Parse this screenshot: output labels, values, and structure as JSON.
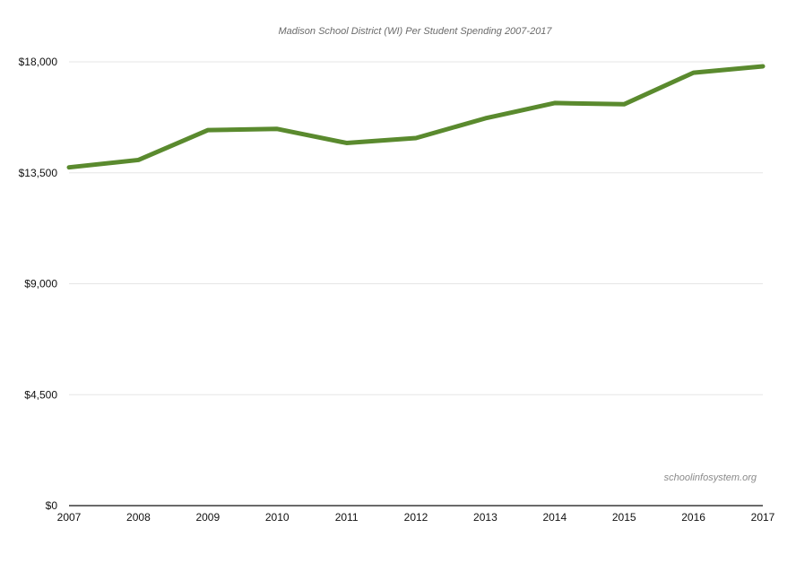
{
  "chart_data": {
    "type": "line",
    "title": "Madison School District (WI) Per Student Spending 2007-2017",
    "xlabel": "",
    "ylabel": "",
    "x": [
      "2007",
      "2008",
      "2009",
      "2010",
      "2011",
      "2012",
      "2013",
      "2014",
      "2015",
      "2016",
      "2017"
    ],
    "series": [
      {
        "values": [
          13720,
          14020,
          15230,
          15280,
          14710,
          14910,
          15710,
          16330,
          16280,
          17560,
          17820
        ]
      }
    ],
    "ylim": [
      0,
      18000
    ],
    "yticks": [
      0,
      4500,
      9000,
      13500,
      18000
    ],
    "ytick_labels": [
      "$0",
      "$4,500",
      "$9,000",
      "$13,500",
      "$18,000"
    ],
    "grid": true,
    "legend": "none",
    "line_color": "#5a8a2e",
    "watermark": "schoolinfosystem.org"
  }
}
